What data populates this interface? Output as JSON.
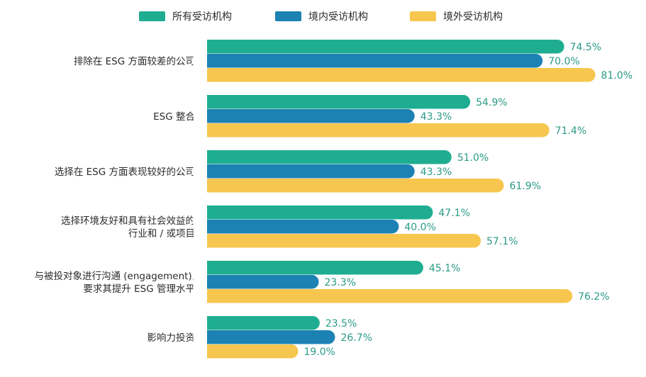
{
  "chart_data": {
    "type": "bar",
    "orientation": "horizontal",
    "xlim": [
      0,
      100
    ],
    "grid": false,
    "legend_position": "top",
    "value_suffix": "%",
    "categories": [
      [
        "排除在 ESG 方面较差的公司"
      ],
      [
        "ESG 整合"
      ],
      [
        "选择在 ESG 方面表现较好的公司"
      ],
      [
        "选择环境友好和具有社会效益的",
        "行业和 / 或项目"
      ],
      [
        "与被投对象进行沟通 (engagement),",
        "要求其提升 ESG 管理水平"
      ],
      [
        "影响力投资"
      ]
    ],
    "series": [
      {
        "name": "所有受访机构",
        "color": "#1fad91",
        "values": [
          74.5,
          54.9,
          51.0,
          47.1,
          45.1,
          23.5
        ]
      },
      {
        "name": "境内受访机构",
        "color": "#1c82b4",
        "values": [
          70.0,
          43.3,
          43.3,
          40.0,
          23.3,
          26.7
        ]
      },
      {
        "name": "境外受访机构",
        "color": "#f7c64f",
        "values": [
          81.0,
          71.4,
          61.9,
          57.1,
          76.2,
          19.0
        ]
      }
    ],
    "value_label_color": "#2a9a86"
  }
}
